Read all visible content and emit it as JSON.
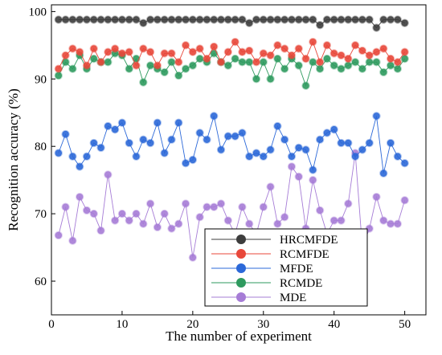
{
  "chart_data": {
    "type": "line",
    "xlabel": "The number of experiment",
    "ylabel": "Recognition accuracy (%)",
    "xlim": [
      0,
      53
    ],
    "ylim": [
      55,
      101
    ],
    "xticks": [
      0,
      10,
      20,
      30,
      40,
      50
    ],
    "yticks": [
      60,
      70,
      80,
      90,
      100
    ],
    "grid": false,
    "legend_position": "bottom-right",
    "x": [
      1,
      2,
      3,
      4,
      5,
      6,
      7,
      8,
      9,
      10,
      11,
      12,
      13,
      14,
      15,
      16,
      17,
      18,
      19,
      20,
      21,
      22,
      23,
      24,
      25,
      26,
      27,
      28,
      29,
      30,
      31,
      32,
      33,
      34,
      35,
      36,
      37,
      38,
      39,
      40,
      41,
      42,
      43,
      44,
      45,
      46,
      47,
      48,
      49,
      50
    ],
    "series": [
      {
        "name": "HRCMFDE",
        "color": "#3d3d3d",
        "values": [
          98.8,
          98.8,
          98.8,
          98.8,
          98.8,
          98.8,
          98.8,
          98.8,
          98.8,
          98.8,
          98.8,
          98.8,
          98.3,
          98.8,
          98.8,
          98.8,
          98.8,
          98.8,
          98.8,
          98.8,
          98.8,
          98.8,
          98.8,
          98.8,
          98.8,
          98.8,
          98.8,
          98.3,
          98.8,
          98.8,
          98.8,
          98.8,
          98.8,
          98.8,
          98.8,
          98.8,
          98.8,
          98.0,
          98.8,
          98.8,
          98.8,
          98.8,
          98.8,
          98.8,
          98.8,
          97.6,
          98.8,
          98.8,
          98.8,
          98.3
        ]
      },
      {
        "name": "RCMFDE",
        "color": "#e8473a",
        "values": [
          91.5,
          93.5,
          94.5,
          94.0,
          92.0,
          94.5,
          92.5,
          94.0,
          94.5,
          93.8,
          94.0,
          92.0,
          94.5,
          94.0,
          92.0,
          93.8,
          93.8,
          92.5,
          95.0,
          94.0,
          94.5,
          93.0,
          94.8,
          92.5,
          94.0,
          95.5,
          94.0,
          94.2,
          92.5,
          93.8,
          93.5,
          95.0,
          94.5,
          93.5,
          94.5,
          93.0,
          95.5,
          92.5,
          95.0,
          93.8,
          93.5,
          93.0,
          95.0,
          94.2,
          93.5,
          94.0,
          94.5,
          93.0,
          92.5,
          94.0
        ]
      },
      {
        "name": "MFDE",
        "color": "#2b68d8",
        "values": [
          79.0,
          81.8,
          78.5,
          77.0,
          78.5,
          80.5,
          79.8,
          83.0,
          82.5,
          83.5,
          80.5,
          78.5,
          81.0,
          80.5,
          83.5,
          79.0,
          81.0,
          83.5,
          77.5,
          78.0,
          82.0,
          81.0,
          84.5,
          79.5,
          81.5,
          81.5,
          82.0,
          78.5,
          79.0,
          78.5,
          79.5,
          83.0,
          81.0,
          78.5,
          79.8,
          79.5,
          76.5,
          81.0,
          82.0,
          82.5,
          80.5,
          80.5,
          78.5,
          79.5,
          80.5,
          84.5,
          76.0,
          80.5,
          78.5,
          77.5
        ]
      },
      {
        "name": "RCMDE",
        "color": "#2e9a5e",
        "values": [
          90.5,
          92.5,
          91.5,
          93.5,
          91.5,
          93.0,
          92.5,
          92.5,
          93.8,
          93.5,
          91.5,
          93.0,
          89.5,
          92.0,
          91.5,
          91.0,
          92.5,
          90.5,
          91.5,
          92.0,
          93.0,
          92.5,
          93.8,
          92.5,
          92.0,
          93.0,
          92.5,
          92.5,
          90.0,
          92.5,
          90.0,
          93.0,
          91.5,
          93.0,
          92.0,
          89.0,
          92.5,
          91.5,
          93.0,
          92.0,
          91.5,
          92.0,
          92.5,
          91.5,
          92.5,
          92.5,
          91.0,
          92.0,
          91.5,
          93.0
        ]
      },
      {
        "name": "MDE",
        "color": "#a67cd6",
        "values": [
          66.8,
          71.0,
          66.0,
          72.5,
          70.5,
          70.0,
          67.5,
          75.8,
          69.0,
          70.0,
          69.0,
          70.0,
          68.5,
          71.5,
          68.0,
          70.0,
          67.8,
          68.5,
          71.5,
          63.5,
          69.5,
          71.0,
          71.0,
          71.5,
          69.0,
          67.0,
          71.0,
          68.5,
          67.0,
          71.0,
          74.0,
          68.5,
          69.5,
          77.0,
          75.5,
          67.8,
          75.0,
          70.5,
          67.0,
          69.0,
          69.0,
          71.5,
          79.0,
          65.0,
          67.8,
          72.5,
          69.0,
          68.5,
          68.5,
          72.0
        ]
      }
    ]
  }
}
